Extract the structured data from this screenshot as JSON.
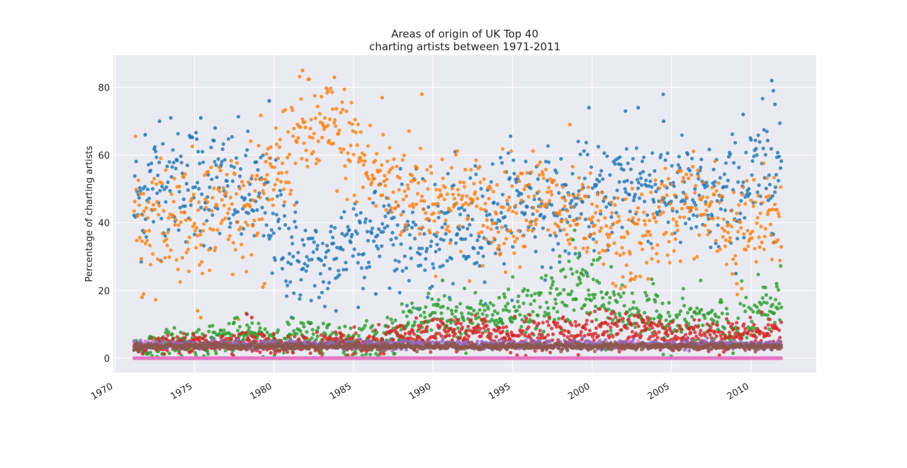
{
  "chart_data": {
    "type": "scatter",
    "title_line1": "Areas of origin of UK Top 40",
    "title_line2": "charting artists between 1971-2011",
    "xlabel": "",
    "ylabel": "Percentage of charting artists",
    "xlim": [
      1969.9,
      2014.1
    ],
    "ylim": [
      -4.2,
      89.5
    ],
    "x_ticks": [
      {
        "value": 1970,
        "label": "1970"
      },
      {
        "value": 1975,
        "label": "1975"
      },
      {
        "value": 1980,
        "label": "1980"
      },
      {
        "value": 1985,
        "label": "1985"
      },
      {
        "value": 1990,
        "label": "1990"
      },
      {
        "value": 1995,
        "label": "1995"
      },
      {
        "value": 2000,
        "label": "2000"
      },
      {
        "value": 2005,
        "label": "2005"
      },
      {
        "value": 2010,
        "label": "2010"
      }
    ],
    "y_ticks": [
      {
        "value": 0,
        "label": "0"
      },
      {
        "value": 20,
        "label": "20"
      },
      {
        "value": 40,
        "label": "40"
      },
      {
        "value": 60,
        "label": "60"
      },
      {
        "value": 80,
        "label": "80"
      }
    ],
    "grid": true,
    "legend": "none",
    "x_data_range": [
      1971.2,
      2011.9
    ],
    "series": [
      {
        "color": "#1f77b4",
        "trend": [
          [
            1971.2,
            45
          ],
          [
            1973,
            53
          ],
          [
            1975,
            52
          ],
          [
            1977,
            50
          ],
          [
            1979,
            47
          ],
          [
            1980,
            40
          ],
          [
            1981,
            33
          ],
          [
            1982,
            28
          ],
          [
            1983,
            26
          ],
          [
            1984,
            32
          ],
          [
            1985,
            38
          ],
          [
            1986,
            37
          ],
          [
            1987,
            38
          ],
          [
            1988,
            37
          ],
          [
            1989,
            32
          ],
          [
            1990,
            35
          ],
          [
            1991,
            36
          ],
          [
            1992,
            37
          ],
          [
            1993,
            40
          ],
          [
            1994,
            44
          ],
          [
            1995,
            46
          ],
          [
            1996,
            47
          ],
          [
            1997,
            45
          ],
          [
            1998,
            43
          ],
          [
            1999,
            45
          ],
          [
            2000,
            46
          ],
          [
            2001,
            48
          ],
          [
            2002,
            52
          ],
          [
            2003,
            52
          ],
          [
            2004,
            51
          ],
          [
            2005,
            50
          ],
          [
            2006,
            47
          ],
          [
            2007,
            45
          ],
          [
            2008,
            46
          ],
          [
            2009,
            48
          ],
          [
            2010,
            52
          ],
          [
            2011,
            56
          ],
          [
            2011.9,
            58
          ]
        ],
        "spread": [
          [
            1971.2,
            9
          ],
          [
            1980,
            9
          ],
          [
            1983,
            7
          ],
          [
            1990,
            9
          ],
          [
            2000,
            8
          ],
          [
            2011.9,
            9
          ]
        ],
        "highlights": [
          [
            1971.9,
            66
          ],
          [
            1972.8,
            70
          ],
          [
            1975.4,
            71
          ],
          [
            1976.3,
            68
          ],
          [
            1979.7,
            76
          ],
          [
            1999.8,
            74
          ],
          [
            2002.1,
            73
          ],
          [
            2002.9,
            74
          ],
          [
            2004.5,
            70
          ],
          [
            2009.5,
            72
          ],
          [
            2011.3,
            82
          ],
          [
            2011.4,
            79
          ],
          [
            2011.5,
            75
          ],
          [
            1983.9,
            14
          ],
          [
            1985.3,
            15
          ],
          [
            1986.4,
            19
          ],
          [
            1981.1,
            12
          ]
        ]
      },
      {
        "color": "#ff7f0e",
        "trend": [
          [
            1971.2,
            44
          ],
          [
            1973,
            42
          ],
          [
            1975,
            42
          ],
          [
            1977,
            45
          ],
          [
            1978,
            45
          ],
          [
            1979,
            44
          ],
          [
            1980,
            55
          ],
          [
            1981,
            62
          ],
          [
            1982,
            66
          ],
          [
            1983,
            67
          ],
          [
            1984,
            66
          ],
          [
            1985,
            62
          ],
          [
            1986,
            55
          ],
          [
            1987,
            52
          ],
          [
            1988,
            50
          ],
          [
            1989,
            50
          ],
          [
            1990,
            47
          ],
          [
            1991,
            47
          ],
          [
            1992,
            46
          ],
          [
            1993,
            44
          ],
          [
            1994,
            43
          ],
          [
            1995,
            45
          ],
          [
            1996,
            48
          ],
          [
            1997,
            47
          ],
          [
            1998,
            43
          ],
          [
            1999,
            39
          ],
          [
            2000,
            38
          ],
          [
            2001,
            36
          ],
          [
            2002,
            33
          ],
          [
            2003,
            35
          ],
          [
            2004,
            40
          ],
          [
            2005,
            43
          ],
          [
            2006,
            47
          ],
          [
            2007,
            44
          ],
          [
            2008,
            41
          ],
          [
            2009,
            36
          ],
          [
            2010,
            38
          ],
          [
            2011,
            40
          ],
          [
            2011.9,
            42
          ]
        ],
        "spread": [
          [
            1971.2,
            9
          ],
          [
            1981,
            8
          ],
          [
            1985,
            8
          ],
          [
            1990,
            8
          ],
          [
            2000,
            7
          ],
          [
            2011.9,
            8
          ]
        ],
        "highlights": [
          [
            1971.7,
            18
          ],
          [
            1971.8,
            19
          ],
          [
            1975.2,
            14
          ],
          [
            1975.4,
            12
          ],
          [
            1979.3,
            21
          ],
          [
            1979.4,
            22
          ],
          [
            1981.8,
            85
          ],
          [
            1983.8,
            83
          ],
          [
            1983.4,
            79
          ],
          [
            1986.8,
            77
          ],
          [
            1989.3,
            78
          ],
          [
            1998.6,
            69
          ],
          [
            2009.1,
            22
          ],
          [
            2002.4,
            23
          ]
        ]
      },
      {
        "color": "#2ca02c",
        "trend": [
          [
            1971.2,
            3
          ],
          [
            1975,
            5
          ],
          [
            1978,
            7
          ],
          [
            1980,
            6
          ],
          [
            1983,
            6
          ],
          [
            1986,
            5
          ],
          [
            1988,
            8
          ],
          [
            1989,
            12
          ],
          [
            1990,
            12
          ],
          [
            1993,
            12
          ],
          [
            1995,
            13
          ],
          [
            1997,
            14
          ],
          [
            1998,
            18
          ],
          [
            1999,
            22
          ],
          [
            2000,
            18
          ],
          [
            2001,
            14
          ],
          [
            2002,
            14
          ],
          [
            2003,
            13
          ],
          [
            2005,
            11
          ],
          [
            2007,
            10
          ],
          [
            2009,
            8
          ],
          [
            2010,
            10
          ],
          [
            2011,
            15
          ],
          [
            2011.9,
            16
          ]
        ],
        "spread": [
          [
            1971.2,
            2
          ],
          [
            1988,
            3
          ],
          [
            1995,
            4
          ],
          [
            1999,
            6
          ],
          [
            2003,
            4
          ],
          [
            2011.9,
            5
          ]
        ],
        "highlights": [
          [
            1998.8,
            35
          ],
          [
            1999.2,
            31
          ],
          [
            2000.1,
            29
          ],
          [
            1990.6,
            23
          ],
          [
            2001.2,
            27
          ],
          [
            2011.6,
            22
          ]
        ]
      },
      {
        "color": "#d62728",
        "trend": [
          [
            1971.2,
            3.5
          ],
          [
            1978,
            5
          ],
          [
            1980,
            4
          ],
          [
            1986,
            4
          ],
          [
            1988,
            6
          ],
          [
            1990,
            7
          ],
          [
            1992,
            8
          ],
          [
            1995,
            7
          ],
          [
            1997,
            7
          ],
          [
            2000,
            8
          ],
          [
            2002,
            10
          ],
          [
            2003,
            9
          ],
          [
            2005,
            7
          ],
          [
            2007,
            7
          ],
          [
            2009,
            7
          ],
          [
            2011.9,
            8
          ]
        ],
        "spread": [
          [
            1971.2,
            1
          ],
          [
            1988,
            2
          ],
          [
            2002,
            3
          ],
          [
            2011.9,
            2
          ]
        ],
        "highlights": [
          [
            1978.3,
            13
          ],
          [
            1978.6,
            12
          ]
        ]
      },
      {
        "color": "#9467bd",
        "trend": [
          [
            1971.2,
            4
          ],
          [
            1983,
            4
          ],
          [
            1995,
            4
          ],
          [
            2011.9,
            4
          ]
        ],
        "spread": [
          [
            1971.2,
            0.6
          ],
          [
            2011.9,
            0.6
          ]
        ],
        "highlights": []
      },
      {
        "color": "#8c564b",
        "trend": [
          [
            1971.2,
            3.5
          ],
          [
            1983,
            3.5
          ],
          [
            1995,
            3.5
          ],
          [
            2011.9,
            3.5
          ]
        ],
        "spread": [
          [
            1971.2,
            0.5
          ],
          [
            2011.9,
            0.5
          ]
        ],
        "highlights": []
      },
      {
        "color": "#e377c2",
        "trend": [
          [
            1971.2,
            0
          ],
          [
            2011.9,
            0
          ]
        ],
        "spread": [
          [
            1971.2,
            0
          ],
          [
            2011.9,
            0
          ]
        ],
        "highlights": [
          [
            1971.9,
            5
          ],
          [
            1972.4,
            5
          ],
          [
            2002.3,
            5
          ],
          [
            2002.9,
            5
          ]
        ]
      }
    ]
  }
}
